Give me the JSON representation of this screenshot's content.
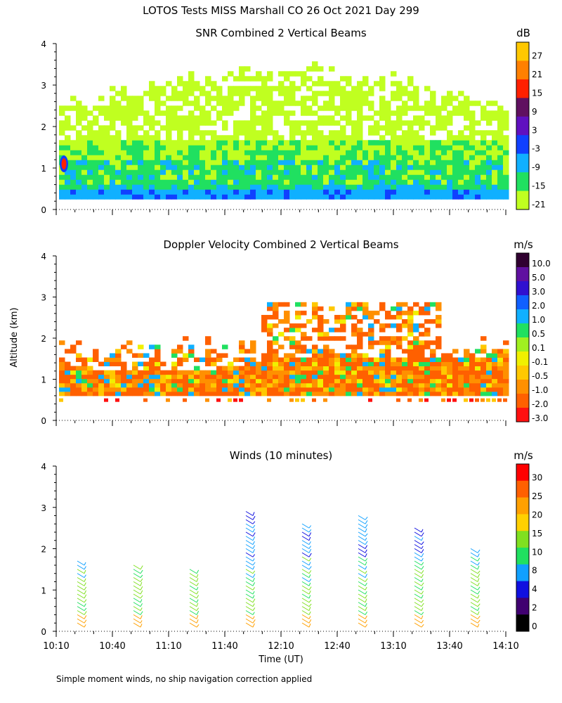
{
  "page": {
    "main_title": "LOTOS Tests MISS Marshall CO  26 Oct 2021 Day 299",
    "y_axis_label": "Altitude (km)",
    "x_axis_label": "Time (UT)",
    "footnote": "Simple moment winds, no ship navigation correction applied"
  },
  "chart_data": [
    {
      "id": "snr",
      "type": "heatmap",
      "title": "SNR Combined 2 Vertical Beams",
      "ylabel": "Altitude (km)",
      "ylim": [
        0,
        4
      ],
      "yticks": [
        "0",
        "1",
        "2",
        "3",
        "4"
      ],
      "colorbar": {
        "unit": "dB",
        "labels": [
          "27",
          "21",
          "15",
          "9",
          "3",
          "-3",
          "-9",
          "-15",
          "-21"
        ],
        "colors": [
          "#ffc800",
          "#ff8000",
          "#ff2000",
          "#601060",
          "#6010c0",
          "#1040ff",
          "#10b0ff",
          "#20e060",
          "#c0ff20"
        ]
      },
      "bands": [
        {
          "from": 0.3,
          "to": 0.5,
          "color": "#10b0ff"
        },
        {
          "from": 0.5,
          "to": 1.2,
          "color": "#20e060"
        },
        {
          "from": 1.2,
          "to": 2.2,
          "color": "#c0ff20"
        },
        {
          "from": 2.2,
          "to": 3.0,
          "color": "#c0ff20"
        }
      ]
    },
    {
      "id": "doppler",
      "type": "heatmap",
      "title": "Doppler Velocity Combined 2 Vertical Beams",
      "ylabel": "Altitude (km)",
      "ylim": [
        0,
        4
      ],
      "yticks": [
        "0",
        "1",
        "2",
        "3",
        "4"
      ],
      "colorbar": {
        "unit": "m/s",
        "labels": [
          "10.0",
          "5.0",
          "3.0",
          "2.0",
          "1.0",
          "0.5",
          "0.1",
          "-0.1",
          "-0.5",
          "-1.0",
          "-2.0",
          "-3.0"
        ],
        "colors": [
          "#300030",
          "#6010a0",
          "#3010d0",
          "#1060ff",
          "#10b0ff",
          "#20e060",
          "#a0f020",
          "#f0f000",
          "#ffc800",
          "#ff9000",
          "#ff6000",
          "#ff1010"
        ]
      }
    },
    {
      "id": "winds",
      "type": "scatter",
      "title": "Winds (10 minutes)",
      "ylabel": "Altitude (km)",
      "ylim": [
        0,
        4
      ],
      "yticks": [
        "0",
        "1",
        "2",
        "3",
        "4"
      ],
      "xlabel": "Time (UT)",
      "xticks": [
        "10:10",
        "10:40",
        "11:10",
        "11:40",
        "12:10",
        "12:40",
        "13:10",
        "13:40",
        "14:10"
      ],
      "colorbar": {
        "unit": "m/s",
        "labels": [
          "30",
          "25",
          "20",
          "15",
          "10",
          "8",
          "4",
          "2",
          "0"
        ],
        "colors": [
          "#ff0000",
          "#ff6000",
          "#ffa000",
          "#ffd000",
          "#80e020",
          "#20e060",
          "#10a0ff",
          "#1010e0",
          "#400070",
          "#000000"
        ]
      },
      "profile_times": [
        "10:25",
        "10:55",
        "11:25",
        "11:55",
        "12:25",
        "12:55",
        "13:25",
        "13:55"
      ],
      "profiles": [
        {
          "time": "10:25",
          "top_km": 1.7
        },
        {
          "time": "10:55",
          "top_km": 1.6
        },
        {
          "time": "11:25",
          "top_km": 1.5
        },
        {
          "time": "11:55",
          "top_km": 2.9
        },
        {
          "time": "12:25",
          "top_km": 2.6
        },
        {
          "time": "12:55",
          "top_km": 2.8
        },
        {
          "time": "13:25",
          "top_km": 2.5
        },
        {
          "time": "13:55",
          "top_km": 2.0
        }
      ]
    }
  ]
}
